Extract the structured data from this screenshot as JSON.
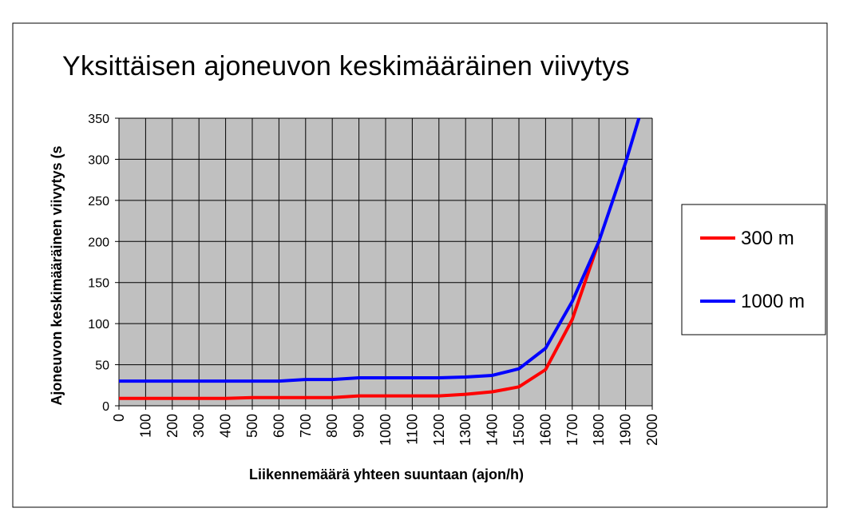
{
  "chart_data": {
    "type": "line",
    "title": "Yksittäisen ajoneuvon keskimääräinen viivytys",
    "xlabel": "Liikennemäärä yhteen suuntaan (ajon/h)",
    "ylabel": "Ajoneuvon keskimääräinen viivytys (s",
    "x": [
      0,
      100,
      200,
      300,
      400,
      500,
      600,
      700,
      800,
      900,
      1000,
      1100,
      1200,
      1300,
      1400,
      1500,
      1600,
      1700,
      1800,
      1900,
      2000
    ],
    "x_tick_labels": [
      "0",
      "100",
      "200",
      "300",
      "400",
      "500",
      "600",
      "700",
      "800",
      "900",
      "1000",
      "1100",
      "1200",
      "1300",
      "1400",
      "1500",
      "1600",
      "1700",
      "1800",
      "1900",
      "2000"
    ],
    "y_tick_labels": [
      "0",
      "50",
      "100",
      "150",
      "200",
      "250",
      "300",
      "350"
    ],
    "xlim": [
      0,
      2000
    ],
    "ylim": [
      0,
      350
    ],
    "grid": true,
    "legend_position": "right",
    "plot_background": "#c0c0c0",
    "series": [
      {
        "name": "300 m",
        "color": "#ff0000",
        "x": [
          0,
          100,
          200,
          300,
          400,
          500,
          600,
          700,
          800,
          900,
          1000,
          1100,
          1200,
          1300,
          1400,
          1500,
          1600,
          1700,
          1800
        ],
        "values": [
          9,
          9,
          9,
          9,
          9,
          10,
          10,
          10,
          10,
          12,
          12,
          12,
          12,
          14,
          17,
          23,
          44,
          105,
          200
        ]
      },
      {
        "name": "1000 m",
        "color": "#0000ff",
        "x": [
          0,
          100,
          200,
          300,
          400,
          500,
          600,
          700,
          800,
          900,
          1000,
          1100,
          1200,
          1300,
          1400,
          1500,
          1600,
          1700,
          1800,
          1900,
          1950
        ],
        "values": [
          30,
          30,
          30,
          30,
          30,
          30,
          30,
          32,
          32,
          34,
          34,
          34,
          34,
          35,
          37,
          45,
          70,
          127,
          200,
          296,
          350
        ]
      }
    ]
  }
}
